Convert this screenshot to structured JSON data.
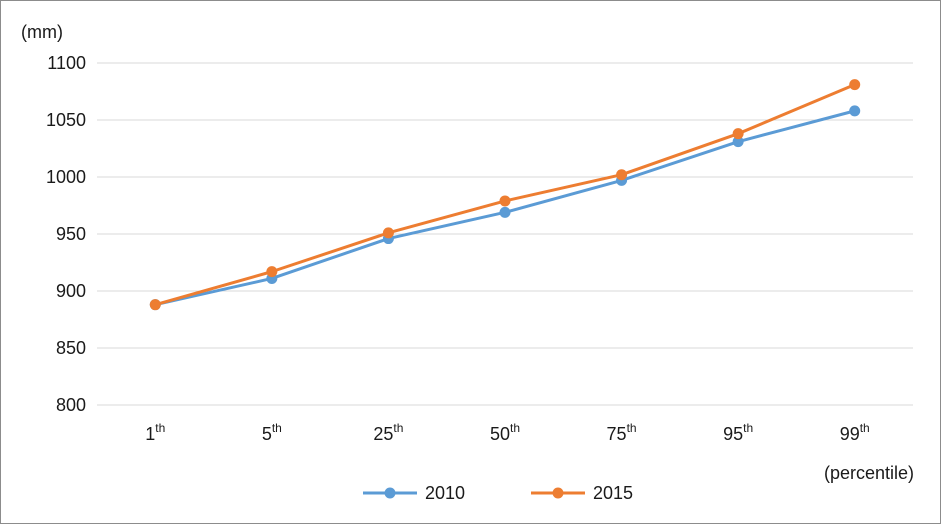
{
  "chart_data": {
    "type": "line",
    "categories": [
      {
        "base": "1",
        "sup": "th"
      },
      {
        "base": "5",
        "sup": "th"
      },
      {
        "base": "25",
        "sup": "th"
      },
      {
        "base": "50",
        "sup": "th"
      },
      {
        "base": "75",
        "sup": "th"
      },
      {
        "base": "95",
        "sup": "th"
      },
      {
        "base": "99",
        "sup": "th"
      }
    ],
    "series": [
      {
        "name": "2010",
        "color": "#5b9bd5",
        "values": [
          888,
          911,
          946,
          969,
          997,
          1031,
          1058
        ]
      },
      {
        "name": "2015",
        "color": "#ed7d31",
        "values": [
          888,
          917,
          951,
          979,
          1002,
          1038,
          1081
        ]
      }
    ],
    "yticks": [
      "800",
      "850",
      "900",
      "950",
      "1000",
      "1050",
      "1100"
    ],
    "ylim": [
      800,
      1100
    ],
    "ylabel": "(mm)",
    "xlabel": "(percentile)",
    "grid": true,
    "legend_position": "bottom"
  }
}
